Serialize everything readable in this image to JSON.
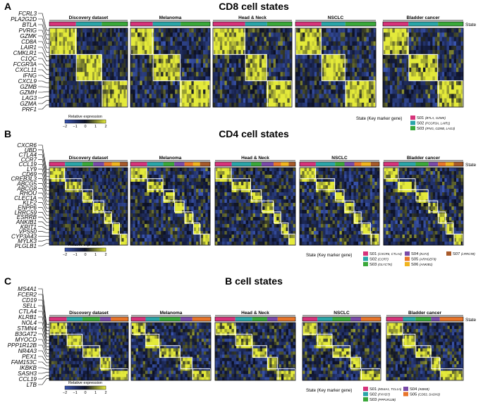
{
  "figure": {
    "colors": {
      "heat_low": "#3a55b0",
      "heat_mid": "#0c1024",
      "heat_high": "#e4ea3a",
      "frame": "#000000",
      "block_outline": "#ffffff",
      "state_colors": {
        "S01": "#d6337a",
        "S02": "#2aa5a8",
        "S03": "#3aa83a",
        "S04": "#7a4aa8",
        "S05": "#e8752a",
        "S06": "#f0b41e",
        "S07": "#a85a2a"
      }
    },
    "panels": [
      {
        "letter": "A",
        "title": "CD8 cell states",
        "datasets": [
          "Discovery dataset",
          "Melanoma",
          "Head & Neck",
          "NSCLC",
          "Bladder cancer"
        ],
        "state_label": "State",
        "genes": [
          "FCRL3",
          "PLA2G2D",
          "BTLA",
          "PVRIG",
          "GZMK",
          "CD8A",
          "LAIR1",
          "CMKLR1",
          "C1QC",
          "FCGR3A",
          "CXCL11",
          "IFNG",
          "CXCL9",
          "GZMB",
          "GZMH",
          "LAG3",
          "GZMA",
          "PRF1"
        ],
        "colorbar": {
          "title": "Relative expression",
          "ticks": [
            "−2",
            "−1",
            "0",
            "1",
            "2"
          ]
        },
        "legend_title": "State (Key marker gene)",
        "legend": [
          {
            "state": "S01",
            "genes": "(BTLA, GZMK)",
            "color": "#d6337a"
          },
          {
            "state": "S02",
            "genes": "(FCGR3A, LAIR1)",
            "color": "#2aa5a8"
          },
          {
            "state": "S03",
            "genes": "(IFNG, GZMB, LAG3)",
            "color": "#3aa83a"
          }
        ],
        "state_fractions": [
          0.34,
          0.33,
          0.33
        ]
      },
      {
        "letter": "B",
        "title": "CD4 cell states",
        "datasets": [
          "Discovery dataset",
          "Melanoma",
          "Head & Neck",
          "NSCLC",
          "Bladder cancer"
        ],
        "state_label": "State",
        "genes": [
          "CXCR6",
          "UBD",
          "CTLA4",
          "CCR7",
          "CCL19",
          "LY9",
          "CD69",
          "CREB3L3",
          "ABCG5",
          "ABCG8",
          "RHOU",
          "CLEC1A",
          "KLF2",
          "ENPP6",
          "LRRC59",
          "ESRRB",
          "ANKIB1",
          "KRIT1",
          "VPS50",
          "CYP3A43",
          "MYLK3",
          "PLGLB1"
        ],
        "colorbar": {
          "title": "Relative expression",
          "ticks": [
            "−2",
            "−1",
            "0",
            "1",
            "2"
          ]
        },
        "legend_title": "State (Key marker gene)",
        "legend": [
          {
            "state": "S01",
            "genes": "(CXCR6, CTLA4)",
            "color": "#d6337a"
          },
          {
            "state": "S02",
            "genes": "(CCR7)",
            "color": "#2aa5a8"
          },
          {
            "state": "S03",
            "genes": "(GLYCTK)",
            "color": "#3aa83a"
          },
          {
            "state": "S04",
            "genes": "(KLF2)",
            "color": "#7a4aa8"
          },
          {
            "state": "S05",
            "genes": "(ARHGEF9)",
            "color": "#e8752a"
          },
          {
            "state": "S06",
            "genes": "(ANKIB1)",
            "color": "#f0b41e"
          },
          {
            "state": "S07",
            "genes": "(LRRC59)",
            "color": "#a85a2a"
          }
        ],
        "state_fractions": [
          0.2,
          0.22,
          0.14,
          0.14,
          0.1,
          0.1,
          0.1
        ]
      },
      {
        "letter": "C",
        "title": "B cell states",
        "datasets": [
          "Discovery dataset",
          "Melanoma",
          "Head & Neck",
          "NSCLC",
          "Bladder cancer"
        ],
        "state_label": "State",
        "genes": [
          "MS4A1",
          "FCER2",
          "CD19",
          "SELL",
          "CTLA4",
          "KLRB1",
          "NOL4",
          "STMN4",
          "B3GAT2",
          "MYOCD",
          "PPP1R12B",
          "NR4A3",
          "PEX1",
          "FAM153C",
          "IKBKB",
          "SASH3",
          "CCL19",
          "LTB"
        ],
        "colorbar": {
          "title": "Relative expression",
          "ticks": [
            "−2",
            "−1",
            "0",
            "1",
            "2"
          ]
        },
        "legend_title": "State (Key marker gene)",
        "legend": [
          {
            "state": "S01",
            "genes": "(MS4A1, TCL1A)",
            "color": "#d6337a"
          },
          {
            "state": "S02",
            "genes": "(FXYD7)",
            "color": "#2aa5a8"
          },
          {
            "state": "S03",
            "genes": "(PPP1R12B)",
            "color": "#3aa83a"
          },
          {
            "state": "S04",
            "genes": "(IKBKB)",
            "color": "#7a4aa8"
          },
          {
            "state": "S05",
            "genes": "(CD53, SASH3)",
            "color": "#e8752a"
          }
        ],
        "state_fractions": [
          0.22,
          0.2,
          0.22,
          0.14,
          0.22
        ]
      }
    ]
  }
}
